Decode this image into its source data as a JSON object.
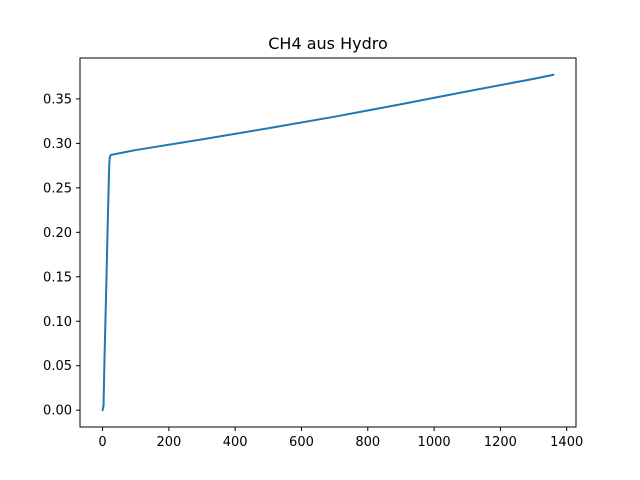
{
  "chart_data": {
    "type": "line",
    "title": "CH4 aus Hydro",
    "xlabel": "",
    "ylabel": "",
    "xlim": [
      -68,
      1428
    ],
    "ylim": [
      -0.0189,
      0.396
    ],
    "xticks": [
      0,
      200,
      400,
      600,
      800,
      1000,
      1200,
      1400
    ],
    "yticks": [
      0.0,
      0.05,
      0.1,
      0.15,
      0.2,
      0.25,
      0.3,
      0.35
    ],
    "xtick_labels": [
      "0",
      "200",
      "400",
      "600",
      "800",
      "1000",
      "1200",
      "1400"
    ],
    "ytick_labels": [
      "0.00",
      "0.05",
      "0.10",
      "0.15",
      "0.20",
      "0.25",
      "0.30",
      "0.35"
    ],
    "grid": false,
    "legend": "none",
    "series": [
      {
        "color": "#1f77b4",
        "x": [
          0,
          3,
          6,
          10,
          15,
          20,
          22,
          25,
          100,
          300,
          500,
          700,
          900,
          1100,
          1300,
          1360
        ],
        "y": [
          0.0,
          0.005,
          0.06,
          0.12,
          0.2,
          0.275,
          0.285,
          0.287,
          0.2925,
          0.3045,
          0.317,
          0.33,
          0.344,
          0.3585,
          0.3725,
          0.3772
        ]
      }
    ]
  }
}
